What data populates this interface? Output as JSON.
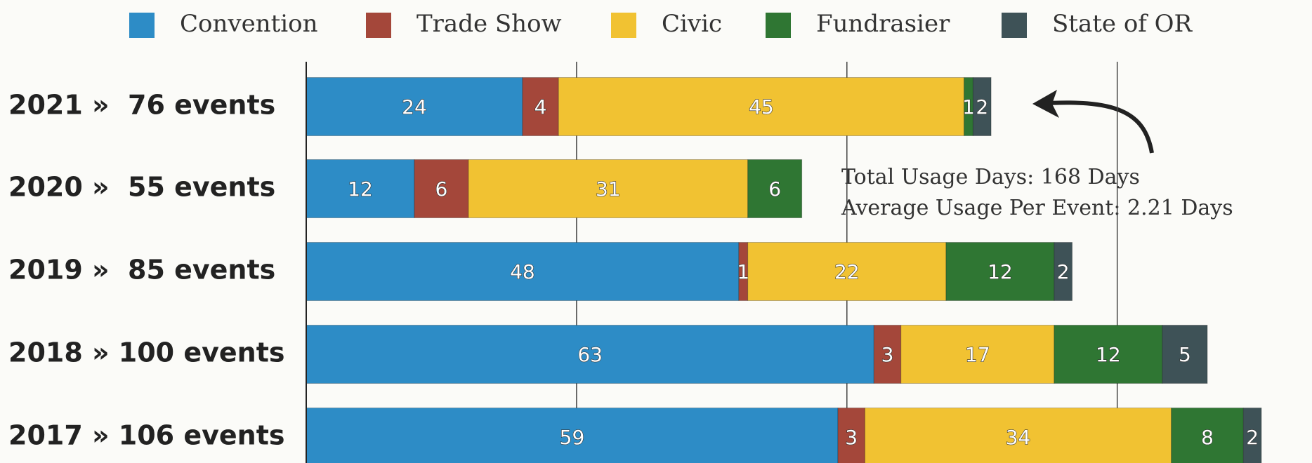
{
  "chart_data": {
    "type": "stacked-barh",
    "categories": [
      "2021 »  76 events",
      "2020 »  55 events",
      "2019 »  85 events",
      "2018 » 100 events",
      "2017 » 106 events"
    ],
    "series": [
      {
        "name": "Convention",
        "color": "#2d8cc6",
        "values": [
          24,
          12,
          48,
          63,
          59
        ]
      },
      {
        "name": "Trade Show",
        "color": "#a4473a",
        "values": [
          4,
          6,
          1,
          3,
          3
        ]
      },
      {
        "name": "Civic",
        "color": "#f1c232",
        "values": [
          45,
          31,
          22,
          17,
          34
        ]
      },
      {
        "name": "Fundrasier",
        "color": "#2f7633",
        "values": [
          1,
          6,
          12,
          12,
          8
        ]
      },
      {
        "name": "State of OR",
        "color": "#3e5257",
        "values": [
          2,
          null,
          2,
          5,
          2
        ]
      }
    ],
    "xlim": [
      0,
      110
    ],
    "xticks": [
      0,
      30,
      60,
      90
    ],
    "grid": true,
    "annotations": [
      "Total Usage Days: 168 Days",
      "Average Usage Per Event: 2.21 Days"
    ]
  }
}
